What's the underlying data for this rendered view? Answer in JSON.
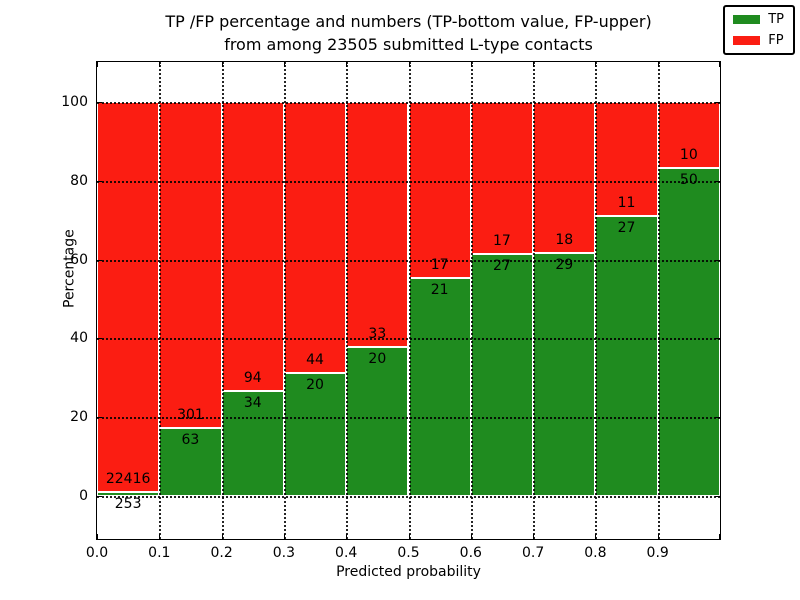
{
  "title": {
    "line1": "TP /FP percentage and numbers (TP-bottom value, FP-upper)",
    "line2": "from among 23505 submitted L-type contacts"
  },
  "chart_data": {
    "type": "bar",
    "stacked": true,
    "normalized_to": 100,
    "title": "TP /FP percentage and numbers (TP-bottom value, FP-upper)\nfrom among 23505 submitted L-type contacts",
    "xlabel": "Predicted probability",
    "ylabel": "Percentage",
    "total_contacts": 23505,
    "bin_width": 0.1,
    "categories": [
      "0.0-0.1",
      "0.1-0.2",
      "0.2-0.3",
      "0.3-0.4",
      "0.4-0.5",
      "0.5-0.6",
      "0.6-0.7",
      "0.7-0.8",
      "0.8-0.9",
      "0.9-1.0"
    ],
    "series": [
      {
        "name": "TP",
        "color": "#1f8b1f",
        "counts": [
          253,
          63,
          34,
          20,
          20,
          21,
          27,
          29,
          27,
          50
        ]
      },
      {
        "name": "FP",
        "color": "#fb1d12",
        "counts": [
          22416,
          301,
          94,
          44,
          33,
          17,
          17,
          18,
          11,
          10
        ]
      }
    ],
    "bar_height_rule": "TP segment height = tp/(tp+fp)*100 ; FP segment stacked above to 100",
    "xticks": [
      "0.0",
      "0.1",
      "0.2",
      "0.3",
      "0.4",
      "0.5",
      "0.6",
      "0.7",
      "0.8",
      "0.9"
    ],
    "yticks": [
      0,
      20,
      40,
      60,
      80,
      100
    ],
    "xlim": [
      0.0,
      1.0
    ],
    "ylim": [
      -10.9,
      110.1
    ],
    "grid": "dotted both axes",
    "legend_position": "upper right",
    "bar_edge_color": "#ffffff",
    "axis_color": "#000000"
  },
  "legend": {
    "items": [
      {
        "label": "TP",
        "color": "#1f8b1f"
      },
      {
        "label": "FP",
        "color": "#fb1d12"
      }
    ]
  }
}
